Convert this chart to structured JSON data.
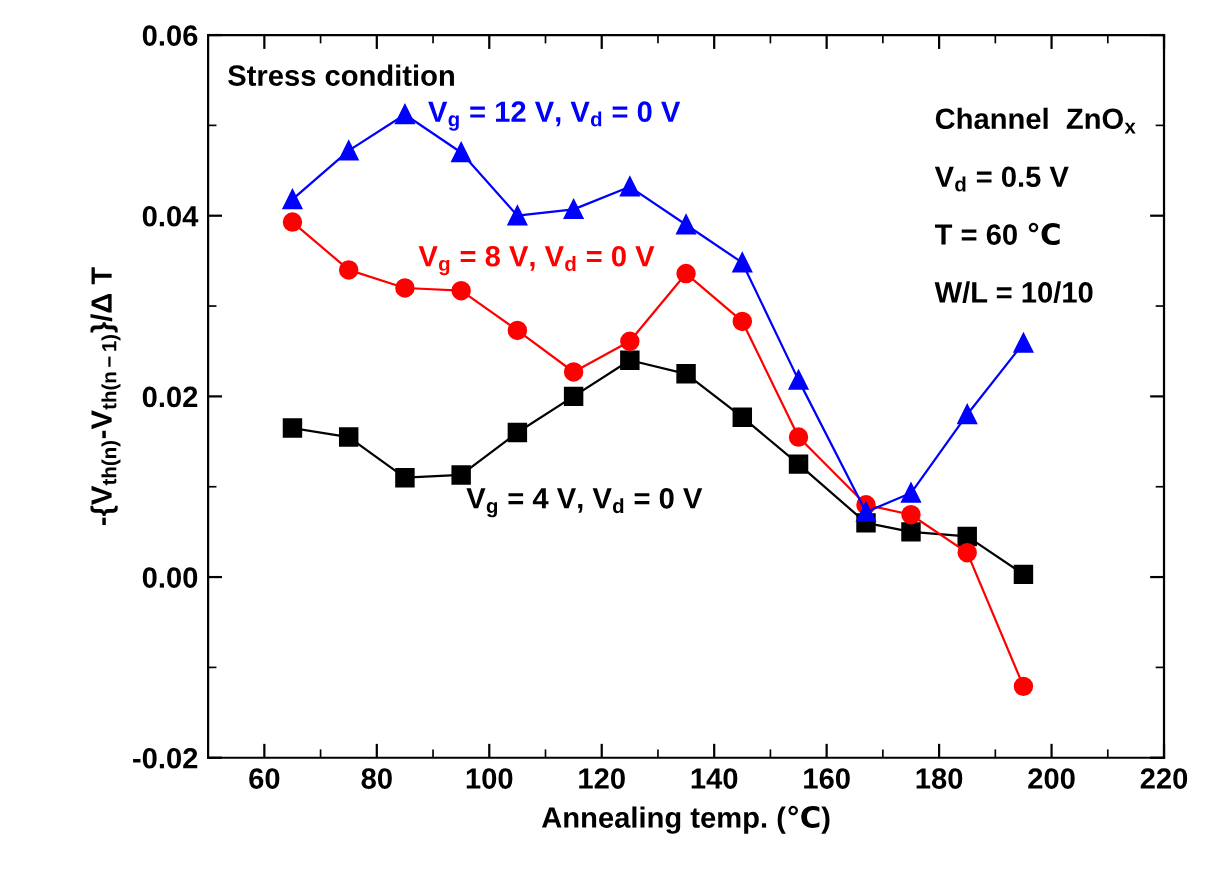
{
  "chart_data": {
    "type": "line",
    "xlabel": "Annealing temp. (℃)",
    "ylabel": "-{V$_{th(n)}$-V$_{th(n−1)}$}/Δ T",
    "x": [
      65,
      75,
      85,
      95,
      105,
      115,
      125,
      135,
      145,
      155,
      167,
      175,
      185,
      195
    ],
    "series": [
      {
        "name": "V$_{g}$ = 4 V, V$_{d}$ = 0 V",
        "color": "#000000",
        "marker": "square",
        "values": [
          0.0165,
          0.0155,
          0.011,
          0.0113,
          0.016,
          0.02,
          0.024,
          0.0225,
          0.0177,
          0.0125,
          0.006,
          0.005,
          0.0045,
          0.0003
        ]
      },
      {
        "name": "V$_{g}$ = 8 V, V$_{d}$ = 0 V",
        "color": "#ff0000",
        "marker": "circle",
        "values": [
          0.0393,
          0.034,
          0.032,
          0.0317,
          0.0273,
          0.0227,
          0.0261,
          0.0336,
          0.0283,
          0.0155,
          0.008,
          0.0069,
          0.0027,
          -0.0121
        ]
      },
      {
        "name": "V$_{g}$ = 12 V, V$_{d}$ = 0 V",
        "color": "#0000ff",
        "marker": "triangle",
        "values": [
          0.0418,
          0.0472,
          0.0512,
          0.047,
          0.04,
          0.0407,
          0.0432,
          0.039,
          0.0348,
          0.0218,
          0.0072,
          0.0093,
          0.018,
          0.0259
        ]
      }
    ],
    "xlim": [
      50,
      220
    ],
    "xticks": [
      60,
      80,
      100,
      120,
      140,
      160,
      180,
      200,
      220
    ],
    "ylim": [
      -0.02,
      0.06
    ],
    "yticks": [
      -0.02,
      {
        "value": 0,
        "label": "0.00"
      },
      0.02,
      0.04,
      0.06
    ],
    "annotations": [
      "Stress condition",
      "Channel  ZnO$_{x}$",
      "V$_{d}$ = 0.5 V",
      "T = 60 ℃",
      "W/L = 10/10"
    ],
    "grid": false,
    "legend": false,
    "line_style": "solid"
  }
}
